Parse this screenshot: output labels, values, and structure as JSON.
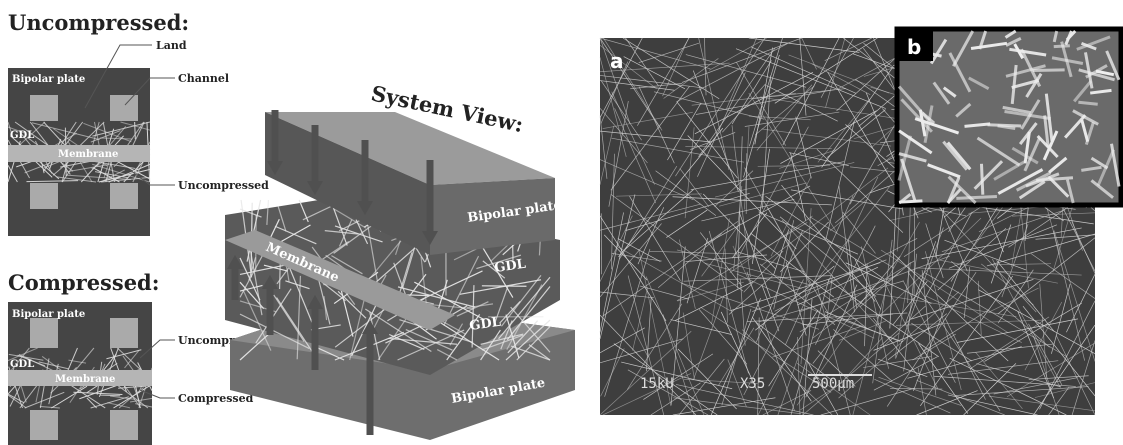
{
  "schematic": {
    "uncompressed": {
      "title": "Uncompressed:",
      "bipolar_plate": "Bipolar plate",
      "gdl": "GDL",
      "membrane": "Membrane",
      "callouts": [
        "Land",
        "Channel",
        "Uncompressed"
      ]
    },
    "compressed": {
      "title": "Compressed:",
      "bipolar_plate": "Bipolar plate",
      "gdl": "GDL",
      "membrane": "Membrane",
      "callouts": [
        "Uncompressed",
        "Compressed"
      ]
    }
  },
  "system_view": {
    "title": "System View:",
    "top_plate": "Bipolar plate",
    "membrane": "Membrane",
    "gdl_upper": "GDL",
    "gdl_lower": "GDL",
    "bottom_plate": "Bipolar plate"
  },
  "micrograph": {
    "panel_a": "a",
    "panel_b": "b",
    "voltage": "15kU",
    "magnification": "X35",
    "scale_bar": "500µm"
  }
}
